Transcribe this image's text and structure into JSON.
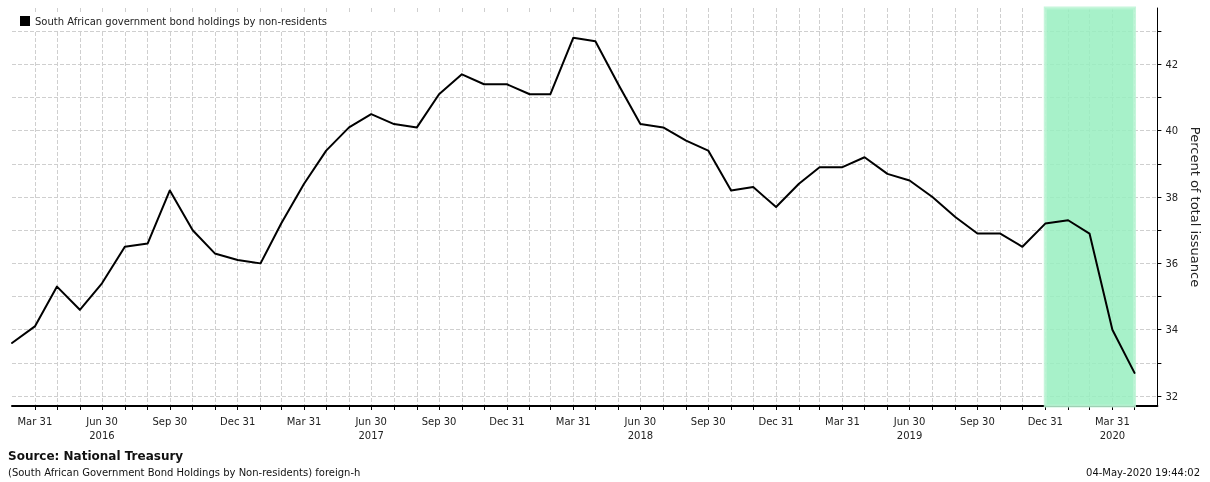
{
  "chart_data": {
    "type": "line",
    "ylabel": "Percent of total issuance",
    "annotations": [
      "Source: National Treasury",
      "(South African Government Bond Holdings by Non-residents) foreign-h",
      "04-May-2020 19:44:02"
    ],
    "x": [
      "2016-02-29",
      "2016-03-31",
      "2016-04-30",
      "2016-05-31",
      "2016-06-30",
      "2016-07-31",
      "2016-08-31",
      "2016-09-30",
      "2016-10-31",
      "2016-11-30",
      "2016-12-31",
      "2017-01-31",
      "2017-02-28",
      "2017-03-31",
      "2017-04-30",
      "2017-05-31",
      "2017-06-30",
      "2017-07-31",
      "2017-08-31",
      "2017-09-30",
      "2017-10-31",
      "2017-11-30",
      "2017-12-31",
      "2018-01-31",
      "2018-02-28",
      "2018-03-31",
      "2018-04-30",
      "2018-05-31",
      "2018-06-30",
      "2018-07-31",
      "2018-08-31",
      "2018-09-30",
      "2018-10-31",
      "2018-11-30",
      "2018-12-31",
      "2019-01-31",
      "2019-02-28",
      "2019-03-31",
      "2019-04-30",
      "2019-05-31",
      "2019-06-30",
      "2019-07-31",
      "2019-08-31",
      "2019-09-30",
      "2019-10-31",
      "2019-11-30",
      "2019-12-31",
      "2020-01-31",
      "2020-02-29",
      "2020-03-31",
      "2020-04-30"
    ],
    "series": [
      {
        "name": "South African government bond holdings by non-residents",
        "color": "#000000",
        "values": [
          33.6,
          34.1,
          35.3,
          34.6,
          35.4,
          36.5,
          36.6,
          38.2,
          37.0,
          36.3,
          36.1,
          36.0,
          37.2,
          38.4,
          39.4,
          40.1,
          40.5,
          40.2,
          40.1,
          41.1,
          41.7,
          41.4,
          41.4,
          41.1,
          41.1,
          42.8,
          42.7,
          41.4,
          40.2,
          40.1,
          39.7,
          39.4,
          38.2,
          38.3,
          37.7,
          38.4,
          38.9,
          38.9,
          39.2,
          38.7,
          38.5,
          38.0,
          37.4,
          36.9,
          36.9,
          36.5,
          37.2,
          37.3,
          36.9,
          34.0,
          32.7
        ]
      }
    ],
    "xlim": [
      "2016-02-29",
      "2020-05-31"
    ],
    "xticks": [
      {
        "value": "2016-03-31",
        "label": "Mar 31"
      },
      {
        "value": "2016-04-30",
        "label": null
      },
      {
        "value": "2016-05-31",
        "label": null
      },
      {
        "value": "2016-06-30",
        "label": "Jun 30\n2016"
      },
      {
        "value": "2016-07-31",
        "label": null
      },
      {
        "value": "2016-08-31",
        "label": null
      },
      {
        "value": "2016-09-30",
        "label": "Sep 30"
      },
      {
        "value": "2016-10-31",
        "label": null
      },
      {
        "value": "2016-11-30",
        "label": null
      },
      {
        "value": "2016-12-31",
        "label": "Dec 31"
      },
      {
        "value": "2017-01-31",
        "label": null
      },
      {
        "value": "2017-02-28",
        "label": null
      },
      {
        "value": "2017-03-31",
        "label": "Mar 31"
      },
      {
        "value": "2017-04-30",
        "label": null
      },
      {
        "value": "2017-05-31",
        "label": null
      },
      {
        "value": "2017-06-30",
        "label": "Jun 30\n2017"
      },
      {
        "value": "2017-07-31",
        "label": null
      },
      {
        "value": "2017-08-31",
        "label": null
      },
      {
        "value": "2017-09-30",
        "label": "Sep 30"
      },
      {
        "value": "2017-10-31",
        "label": null
      },
      {
        "value": "2017-11-30",
        "label": null
      },
      {
        "value": "2017-12-31",
        "label": "Dec 31"
      },
      {
        "value": "2018-01-31",
        "label": null
      },
      {
        "value": "2018-02-28",
        "label": null
      },
      {
        "value": "2018-03-31",
        "label": "Mar 31"
      },
      {
        "value": "2018-04-30",
        "label": null
      },
      {
        "value": "2018-05-31",
        "label": null
      },
      {
        "value": "2018-06-30",
        "label": "Jun 30\n2018"
      },
      {
        "value": "2018-07-31",
        "label": null
      },
      {
        "value": "2018-08-31",
        "label": null
      },
      {
        "value": "2018-09-30",
        "label": "Sep 30"
      },
      {
        "value": "2018-10-31",
        "label": null
      },
      {
        "value": "2018-11-30",
        "label": null
      },
      {
        "value": "2018-12-31",
        "label": "Dec 31"
      },
      {
        "value": "2019-01-31",
        "label": null
      },
      {
        "value": "2019-02-28",
        "label": null
      },
      {
        "value": "2019-03-31",
        "label": "Mar 31"
      },
      {
        "value": "2019-04-30",
        "label": null
      },
      {
        "value": "2019-05-31",
        "label": null
      },
      {
        "value": "2019-06-30",
        "label": "Jun 30\n2019"
      },
      {
        "value": "2019-07-31",
        "label": null
      },
      {
        "value": "2019-08-31",
        "label": null
      },
      {
        "value": "2019-09-30",
        "label": "Sep 30"
      },
      {
        "value": "2019-10-31",
        "label": null
      },
      {
        "value": "2019-11-30",
        "label": null
      },
      {
        "value": "2019-12-31",
        "label": "Dec 31"
      },
      {
        "value": "2020-01-31",
        "label": null
      },
      {
        "value": "2020-02-29",
        "label": null
      },
      {
        "value": "2020-03-31",
        "label": "Mar 31\n2020"
      },
      {
        "value": "2020-04-30",
        "label": null
      }
    ],
    "ylim": [
      31.7,
      43.7
    ],
    "yticks": [
      32,
      {
        "value": 33,
        "label": null
      },
      34,
      {
        "value": 35,
        "label": null
      },
      36,
      {
        "value": 37,
        "label": null
      },
      38,
      {
        "value": 39,
        "label": null
      },
      40,
      {
        "value": 41,
        "label": null
      },
      42,
      {
        "value": 43,
        "label": null
      }
    ],
    "bands": [
      {
        "axis": "x",
        "from": "2019-12-31",
        "to": "2020-04-30",
        "color": "#98efbf"
      }
    ],
    "grid": true,
    "legend": "top left",
    "line_style": "solid",
    "marker": "none"
  }
}
